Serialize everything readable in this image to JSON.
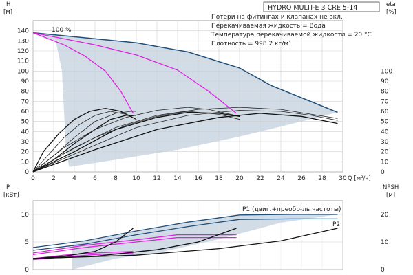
{
  "chart_data": [
    {
      "type": "line",
      "name": "pump-curves",
      "title": "HYDRO MULTI-E 3 CRE 5-14",
      "notes": [
        "Потери на фитингах и клапанах не вкл.",
        "Перекачиваемая жидкость = Вода",
        "Температура перекачиваемой жидкости = 20 °C",
        "Плотность = 998.2 кг/м³"
      ],
      "speed_label": "100 %",
      "xlabel": "Q [м³/ч]",
      "xlim": [
        0,
        30
      ],
      "x_ticks": [
        0,
        2,
        4,
        6,
        8,
        10,
        12,
        14,
        16,
        18,
        20,
        22,
        24,
        26,
        28,
        30
      ],
      "y_left": {
        "label_line1": "H",
        "label_line2": "[м]",
        "lim": [
          0,
          150
        ],
        "ticks": [
          0,
          10,
          20,
          30,
          40,
          50,
          60,
          70,
          80,
          90,
          100,
          110,
          120,
          130,
          140
        ]
      },
      "y_right": {
        "label_line1": "eta",
        "label_line2": "[%]",
        "lim": [
          0,
          150
        ],
        "ticks": [
          0,
          10,
          20,
          30,
          40,
          50,
          60,
          70,
          80,
          90,
          100
        ]
      },
      "envelope_series": [
        {
          "name": "max-head",
          "color": "#1f4e79",
          "points": [
            [
              0,
              138
            ],
            [
              5,
              133
            ],
            [
              10,
              128
            ],
            [
              15,
              119
            ],
            [
              20,
              103
            ],
            [
              23,
              86
            ],
            [
              29.5,
              59
            ]
          ]
        }
      ],
      "single_pump_series": [
        {
          "name": "single-pump",
          "color": "#e020e0",
          "points": [
            [
              0,
              138
            ],
            [
              3,
              126
            ],
            [
              5,
              115
            ],
            [
              7,
              100
            ],
            [
              8.5,
              80
            ],
            [
              9.7,
              58
            ]
          ]
        }
      ],
      "double_pump_series": [
        {
          "name": "double-pump",
          "color": "#e020e0",
          "points": [
            [
              0,
              138
            ],
            [
              6,
              126
            ],
            [
              10,
              116
            ],
            [
              14,
              101
            ],
            [
              17,
              80
            ],
            [
              19.7,
              58
            ]
          ]
        }
      ],
      "efficiency_series": [
        {
          "name": "eta-1a",
          "points": [
            [
              0,
              0
            ],
            [
              1,
              20
            ],
            [
              2.5,
              38
            ],
            [
              4,
              52
            ],
            [
              5.5,
              60
            ],
            [
              7,
              63
            ],
            [
              8.5,
              60
            ],
            [
              10,
              52
            ]
          ]
        },
        {
          "name": "eta-1b",
          "points": [
            [
              0,
              0
            ],
            [
              1.5,
              17
            ],
            [
              3,
              34
            ],
            [
              4.5,
              47
            ],
            [
              6,
              56
            ],
            [
              7.5,
              60
            ],
            [
              9,
              57
            ],
            [
              10,
              52
            ]
          ]
        },
        {
          "name": "eta-1c",
          "points": [
            [
              0,
              0
            ],
            [
              2,
              16
            ],
            [
              4,
              34
            ],
            [
              6,
              50
            ],
            [
              8,
              58
            ],
            [
              9.5,
              60
            ],
            [
              10,
              60
            ]
          ]
        },
        {
          "name": "eta-1d",
          "points": [
            [
              0,
              0
            ],
            [
              2,
              12
            ],
            [
              4,
              28
            ],
            [
              6,
              42
            ],
            [
              7.5,
              52
            ],
            [
              9,
              56
            ],
            [
              10,
              56
            ]
          ]
        },
        {
          "name": "eta-2a",
          "points": [
            [
              0,
              0
            ],
            [
              3,
              24
            ],
            [
              6,
              42
            ],
            [
              9,
              54
            ],
            [
              12,
              61
            ],
            [
              15,
              64
            ],
            [
              17,
              62
            ],
            [
              20,
              55
            ]
          ]
        },
        {
          "name": "eta-2b",
          "points": [
            [
              0,
              0
            ],
            [
              3,
              18
            ],
            [
              6,
              34
            ],
            [
              9,
              46
            ],
            [
              12,
              55
            ],
            [
              15,
              60
            ],
            [
              18,
              57
            ],
            [
              20,
              52
            ]
          ]
        },
        {
          "name": "eta-2c",
          "points": [
            [
              0,
              0
            ],
            [
              4,
              20
            ],
            [
              8,
              42
            ],
            [
              12,
              54
            ],
            [
              15,
              59
            ],
            [
              18,
              58
            ],
            [
              20,
              55
            ]
          ]
        },
        {
          "name": "eta-3a",
          "points": [
            [
              0,
              0
            ],
            [
              4,
              24
            ],
            [
              8,
              44
            ],
            [
              12,
              56
            ],
            [
              16,
              62
            ],
            [
              20,
              64
            ],
            [
              24,
              62
            ],
            [
              27,
              57
            ],
            [
              29.5,
              53
            ]
          ]
        },
        {
          "name": "eta-3b",
          "points": [
            [
              0,
              0
            ],
            [
              5,
              22
            ],
            [
              10,
              44
            ],
            [
              15,
              56
            ],
            [
              20,
              61
            ],
            [
              24,
              60
            ],
            [
              27,
              56
            ],
            [
              29.5,
              51
            ]
          ]
        },
        {
          "name": "eta-3c",
          "points": [
            [
              0,
              0
            ],
            [
              6,
              22
            ],
            [
              12,
              42
            ],
            [
              18,
              54
            ],
            [
              22,
              58
            ],
            [
              26,
              55
            ],
            [
              29.5,
              48
            ]
          ]
        }
      ],
      "shaded_region": [
        [
          0,
          138
        ],
        [
          5,
          133
        ],
        [
          10,
          128
        ],
        [
          15,
          119
        ],
        [
          20,
          103
        ],
        [
          23,
          86
        ],
        [
          29.5,
          59
        ],
        [
          26,
          50
        ],
        [
          20,
          35
        ],
        [
          14,
          22
        ],
        [
          8,
          12
        ],
        [
          3.5,
          5
        ],
        [
          3.2,
          20
        ],
        [
          3.0,
          60
        ],
        [
          2.8,
          100
        ],
        [
          2.2,
          130
        ]
      ]
    },
    {
      "type": "line",
      "name": "power-npsh",
      "xlim": [
        0,
        30
      ],
      "y_left": {
        "label_line1": "P",
        "label_line2": "[кВт]",
        "lim": [
          0,
          12.5
        ],
        "ticks": [
          0,
          5,
          10
        ]
      },
      "y_right": {
        "label_line1": "NPSH",
        "label_line2": "[м]",
        "lim": [
          0,
          25
        ],
        "ticks": [
          0,
          10,
          20
        ]
      },
      "legend": [
        "P1 (двиг.+преобр-ль частоты)",
        "P2"
      ],
      "power_series": [
        {
          "name": "P1-max",
          "color": "#1f4e79",
          "points": [
            [
              0,
              4.0
            ],
            [
              5,
              5.2
            ],
            [
              10,
              7.0
            ],
            [
              15,
              8.6
            ],
            [
              20,
              9.9
            ],
            [
              25,
              10.0
            ],
            [
              29.5,
              10.0
            ]
          ]
        },
        {
          "name": "P2-max",
          "color": "#1f4e79",
          "points": [
            [
              0,
              3.5
            ],
            [
              5,
              4.6
            ],
            [
              10,
              6.3
            ],
            [
              15,
              7.8
            ],
            [
              20,
              9.1
            ],
            [
              25,
              9.2
            ],
            [
              29.5,
              9.2
            ]
          ]
        },
        {
          "name": "P1-single-a",
          "color": "#e020e0",
          "points": [
            [
              0,
              2.0
            ],
            [
              3,
              2.6
            ],
            [
              6,
              3.0
            ],
            [
              9.7,
              3.3
            ]
          ]
        },
        {
          "name": "P1-single-b",
          "color": "#e020e0",
          "points": [
            [
              0,
              1.8
            ],
            [
              3,
              2.3
            ],
            [
              6,
              2.7
            ],
            [
              9.7,
              3.0
            ]
          ]
        },
        {
          "name": "P1-double-a",
          "color": "#e020e0",
          "points": [
            [
              0,
              3.0
            ],
            [
              5,
              4.4
            ],
            [
              10,
              5.4
            ],
            [
              14,
              6.3
            ],
            [
              19.7,
              6.3
            ]
          ]
        },
        {
          "name": "P1-double-b",
          "color": "#e020e0",
          "points": [
            [
              0,
              2.7
            ],
            [
              5,
              4.0
            ],
            [
              10,
              5.0
            ],
            [
              14,
              5.8
            ],
            [
              19.7,
              5.8
            ]
          ]
        }
      ],
      "npsh_series": [
        {
          "name": "npsh-1",
          "color": "#111111",
          "points": [
            [
              0,
              2.0
            ],
            [
              3,
              2.4
            ],
            [
              6,
              3.3
            ],
            [
              8,
              5.0
            ],
            [
              9.7,
              7.5
            ]
          ]
        },
        {
          "name": "npsh-2",
          "color": "#111111",
          "points": [
            [
              0,
              2.0
            ],
            [
              6,
              2.4
            ],
            [
              12,
              3.6
            ],
            [
              16,
              5.0
            ],
            [
              19.7,
              7.5
            ]
          ]
        },
        {
          "name": "npsh-3",
          "color": "#111111",
          "points": [
            [
              0,
              2.0
            ],
            [
              10,
              2.6
            ],
            [
              18,
              3.8
            ],
            [
              24,
              5.2
            ],
            [
              29.5,
              7.5
            ]
          ]
        }
      ],
      "shaded_region": [
        [
          3.8,
          0
        ],
        [
          8,
          2.0
        ],
        [
          12,
          3.0
        ],
        [
          18,
          5.5
        ],
        [
          24,
          8.5
        ],
        [
          29.5,
          10.0
        ],
        [
          25,
          10.0
        ],
        [
          20,
          9.9
        ],
        [
          15,
          8.6
        ],
        [
          10,
          7.0
        ],
        [
          5,
          5.2
        ],
        [
          3.8,
          4.5
        ]
      ]
    }
  ]
}
